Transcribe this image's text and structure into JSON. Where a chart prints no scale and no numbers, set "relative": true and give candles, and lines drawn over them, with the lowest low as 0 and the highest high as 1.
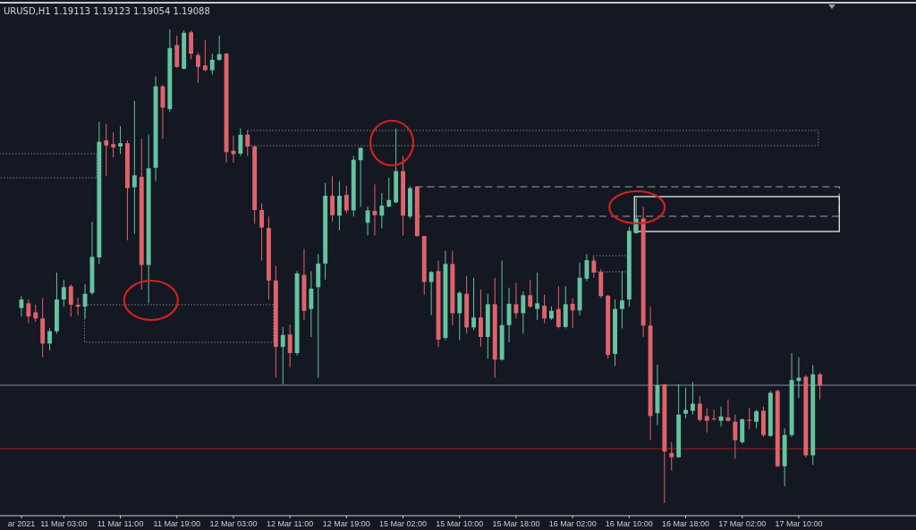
{
  "chart_data": {
    "type": "candlestick",
    "title": "URUSD,H1  1.19113 1.19123 1.19054 1.19088",
    "relative": true,
    "categories": [
      "ar 2021",
      null,
      null,
      null,
      null,
      null,
      "11 Mar 03:00",
      null,
      null,
      null,
      null,
      null,
      null,
      null,
      "11 Mar 11:00",
      null,
      null,
      null,
      null,
      null,
      null,
      null,
      "11 Mar 19:00",
      null,
      null,
      null,
      null,
      null,
      null,
      null,
      "12 Mar 03:00",
      null,
      null,
      null,
      null,
      null,
      null,
      null,
      "12 Mar 11:00",
      null,
      null,
      null,
      null,
      null,
      null,
      null,
      "12 Mar 19:00",
      null,
      null,
      null,
      null,
      null,
      null,
      null,
      "15 Mar 02:00",
      null,
      null,
      null,
      null,
      null,
      null,
      null,
      "15 Mar 10:00",
      null,
      null,
      null,
      null,
      null,
      null,
      null,
      "15 Mar 18:00",
      null,
      null,
      null,
      null,
      null,
      null,
      null,
      "16 Mar 02:00",
      null,
      null,
      null,
      null,
      null,
      null,
      null,
      "16 Mar 10:00",
      null,
      null,
      null,
      null,
      null,
      null,
      null,
      "16 Mar 18:00",
      null,
      null,
      null,
      null,
      null,
      null,
      null,
      "17 Mar 02:00",
      null,
      null,
      null,
      null,
      null,
      null,
      null,
      "17 Mar 10:00",
      null,
      null,
      null
    ],
    "ohlc": [
      [
        0.412,
        0.437,
        0.394,
        0.43
      ],
      [
        0.422,
        0.43,
        0.38,
        0.394
      ],
      [
        0.403,
        0.419,
        0.383,
        0.39
      ],
      [
        0.39,
        0.433,
        0.308,
        0.337
      ],
      [
        0.337,
        0.369,
        0.322,
        0.363
      ],
      [
        0.363,
        0.487,
        0.358,
        0.43
      ],
      [
        0.43,
        0.472,
        0.415,
        0.456
      ],
      [
        0.458,
        0.462,
        0.394,
        0.419
      ],
      [
        0.419,
        0.433,
        0.397,
        0.415
      ],
      [
        0.415,
        0.462,
        0.39,
        0.442
      ],
      [
        0.444,
        0.594,
        0.44,
        0.52
      ],
      [
        0.519,
        0.805,
        0.505,
        0.763
      ],
      [
        0.766,
        0.801,
        0.69,
        0.755
      ],
      [
        0.758,
        0.783,
        0.73,
        0.751
      ],
      [
        0.753,
        0.796,
        0.737,
        0.76
      ],
      [
        0.76,
        0.766,
        0.555,
        0.665
      ],
      [
        0.667,
        0.849,
        0.569,
        0.692
      ],
      [
        0.689,
        0.769,
        0.451,
        0.503
      ],
      [
        0.503,
        0.778,
        0.422,
        0.707
      ],
      [
        0.708,
        0.901,
        0.68,
        0.88
      ],
      [
        0.88,
        0.883,
        0.769,
        0.835
      ],
      [
        0.832,
        1,
        0.826,
        0.961
      ],
      [
        0.967,
        0.987,
        0.919,
        0.921
      ],
      [
        0.917,
        0.998,
        0.916,
        0.993
      ],
      [
        0.994,
        0.998,
        0.937,
        0.949
      ],
      [
        0.946,
        0.951,
        0.887,
        0.921
      ],
      [
        0.924,
        0.978,
        0.912,
        0.914
      ],
      [
        0.914,
        0.949,
        0.905,
        0.936
      ],
      [
        0.936,
        0.987,
        0.934,
        0.948
      ],
      [
        0.949,
        0.951,
        0.719,
        0.741
      ],
      [
        0.744,
        0.776,
        0.719,
        0.737
      ],
      [
        0.738,
        0.791,
        0.733,
        0.778
      ],
      [
        0.778,
        0.787,
        0.733,
        0.753
      ],
      [
        0.753,
        0.755,
        0.59,
        0.619
      ],
      [
        0.619,
        0.633,
        0.512,
        0.582
      ],
      [
        0.581,
        0.605,
        0.43,
        0.47
      ],
      [
        0.47,
        0.501,
        0.265,
        0.33
      ],
      [
        0.33,
        0.372,
        0.251,
        0.355
      ],
      [
        0.356,
        0.377,
        0.287,
        0.317
      ],
      [
        0.317,
        0.49,
        0.312,
        0.485
      ],
      [
        0.482,
        0.537,
        0.387,
        0.406
      ],
      [
        0.41,
        0.49,
        0.351,
        0.453
      ],
      [
        0.456,
        0.526,
        0.265,
        0.506
      ],
      [
        0.506,
        0.676,
        0.472,
        0.649
      ],
      [
        0.649,
        0.69,
        0.594,
        0.608
      ],
      [
        0.607,
        0.68,
        0.576,
        0.649
      ],
      [
        0.651,
        0.67,
        0.612,
        0.618
      ],
      [
        0.618,
        0.733,
        0.605,
        0.725
      ],
      [
        0.724,
        0.751,
        0.626,
        0.75
      ],
      [
        0.592,
        0.626,
        0.565,
        0.618
      ],
      [
        0.617,
        0.673,
        0.565,
        0.608
      ],
      [
        0.607,
        0.655,
        0.58,
        0.628
      ],
      [
        0.626,
        0.687,
        0.625,
        0.64
      ],
      [
        0.635,
        0.791,
        0.633,
        0.701
      ],
      [
        0.701,
        0.733,
        0.565,
        0.607
      ],
      [
        0.605,
        0.669,
        0.601,
        0.665
      ],
      [
        0.668,
        0.669,
        0.562,
        0.564
      ],
      [
        0.564,
        0.564,
        0.44,
        0.467
      ],
      [
        0.467,
        0.49,
        0.397,
        0.488
      ],
      [
        0.49,
        0.512,
        0.33,
        0.345
      ],
      [
        0.349,
        0.533,
        0.344,
        0.505
      ],
      [
        0.505,
        0.533,
        0.376,
        0.401
      ],
      [
        0.401,
        0.447,
        0.344,
        0.444
      ],
      [
        0.442,
        0.48,
        0.358,
        0.371
      ],
      [
        0.371,
        0.476,
        0.365,
        0.392
      ],
      [
        0.392,
        0.451,
        0.33,
        0.351
      ],
      [
        0.351,
        0.442,
        0.305,
        0.42
      ],
      [
        0.42,
        0.476,
        0.265,
        0.303
      ],
      [
        0.303,
        0.512,
        0.301,
        0.376
      ],
      [
        0.376,
        0.455,
        0.34,
        0.421
      ],
      [
        0.42,
        0.465,
        0.39,
        0.401
      ],
      [
        0.401,
        0.447,
        0.358,
        0.439
      ],
      [
        0.439,
        0.472,
        0.412,
        0.415
      ],
      [
        0.41,
        0.487,
        0.387,
        0.422
      ],
      [
        0.417,
        0.44,
        0.38,
        0.39
      ],
      [
        0.39,
        0.415,
        0.387,
        0.406
      ],
      [
        0.41,
        0.458,
        0.369,
        0.372
      ],
      [
        0.372,
        0.458,
        0.369,
        0.42
      ],
      [
        0.421,
        0.433,
        0.37,
        0.407
      ],
      [
        0.407,
        0.508,
        0.397,
        0.476
      ],
      [
        0.474,
        0.526,
        0.469,
        0.513
      ],
      [
        0.512,
        0.519,
        0.476,
        0.487
      ],
      [
        0.488,
        0.494,
        0.433,
        0.437
      ],
      [
        0.438,
        0.44,
        0.305,
        0.313
      ],
      [
        0.315,
        0.43,
        0.29,
        0.41
      ],
      [
        0.41,
        0.49,
        0.369,
        0.428
      ],
      [
        0.43,
        0.583,
        0.415,
        0.575
      ],
      [
        0.57,
        0.644,
        0.569,
        0.601
      ],
      [
        0.601,
        0.626,
        0.351,
        0.375
      ],
      [
        0.375,
        0.415,
        0.133,
        0.184
      ],
      [
        0.19,
        0.292,
        0.165,
        0.249
      ],
      [
        0.251,
        0.252,
        0,
        0.109
      ],
      [
        0.106,
        0.129,
        0.069,
        0.097
      ],
      [
        0.097,
        0.251,
        0.096,
        0.187
      ],
      [
        0.189,
        0.244,
        0.179,
        0.197
      ],
      [
        0.195,
        0.256,
        0.187,
        0.21
      ],
      [
        0.21,
        0.226,
        0.172,
        0.176
      ],
      [
        0.184,
        0.201,
        0.149,
        0.174
      ],
      [
        0.179,
        0.197,
        0.174,
        0.177
      ],
      [
        0.174,
        0.204,
        0.162,
        0.183
      ],
      [
        0.181,
        0.219,
        0.172,
        0.174
      ],
      [
        0.172,
        0.187,
        0.094,
        0.133
      ],
      [
        0.129,
        0.179,
        0.126,
        0.177
      ],
      [
        0.176,
        0.201,
        0.156,
        0.174
      ],
      [
        0.172,
        0.197,
        0.158,
        0.194
      ],
      [
        0.195,
        0.204,
        0.14,
        0.144
      ],
      [
        0.142,
        0.237,
        0.14,
        0.233
      ],
      [
        0.237,
        0.24,
        0.076,
        0.078
      ],
      [
        0.078,
        0.158,
        0.036,
        0.144
      ],
      [
        0.144,
        0.317,
        0.14,
        0.26
      ],
      [
        0.258,
        0.308,
        0.222,
        0.265
      ],
      [
        0.267,
        0.27,
        0.097,
        0.101
      ],
      [
        0.101,
        0.292,
        0.081,
        0.272
      ],
      [
        0.272,
        0.276,
        0.219,
        0.249
      ]
    ],
    "colors": [
      "#64c3a0",
      "#e0636b",
      "#e0636b",
      "#e0636b",
      "#64c3a0",
      "#64c3a0",
      "#64c3a0",
      "#e0636b",
      "#e0636b",
      "#64c3a0",
      "#64c3a0",
      "#64c3a0",
      "#e0636b",
      "#e0636b",
      "#64c3a0",
      "#e0636b",
      "#64c3a0",
      "#e0636b",
      "#64c3a0",
      "#64c3a0",
      "#e0636b",
      "#64c3a0",
      "#e0636b",
      "#64c3a0",
      "#e0636b",
      "#e0636b",
      "#e0636b",
      "#64c3a0",
      "#64c3a0",
      "#e0636b",
      "#e0636b",
      "#64c3a0",
      "#e0636b",
      "#e0636b",
      "#e0636b",
      "#e0636b",
      "#e0636b",
      "#64c3a0",
      "#e0636b",
      "#64c3a0",
      "#e0636b",
      "#64c3a0",
      "#64c3a0",
      "#64c3a0",
      "#e0636b",
      "#64c3a0",
      "#e0636b",
      "#64c3a0",
      "#64c3a0",
      "#64c3a0",
      "#e0636b",
      "#64c3a0",
      "#64c3a0",
      "#64c3a0",
      "#e0636b",
      "#64c3a0",
      "#e0636b",
      "#e0636b",
      "#64c3a0",
      "#e0636b",
      "#64c3a0",
      "#e0636b",
      "#64c3a0",
      "#e0636b",
      "#64c3a0",
      "#e0636b",
      "#64c3a0",
      "#e0636b",
      "#64c3a0",
      "#64c3a0",
      "#e0636b",
      "#64c3a0",
      "#e0636b",
      "#64c3a0",
      "#e0636b",
      "#64c3a0",
      "#e0636b",
      "#64c3a0",
      "#e0636b",
      "#64c3a0",
      "#64c3a0",
      "#e0636b",
      "#e0636b",
      "#e0636b",
      "#64c3a0",
      "#64c3a0",
      "#64c3a0",
      "#64c3a0",
      "#e0636b",
      "#e0636b",
      "#64c3a0",
      "#e0636b",
      "#e0636b",
      "#64c3a0",
      "#64c3a0",
      "#64c3a0",
      "#e0636b",
      "#e0636b",
      "#e0636b",
      "#64c3a0",
      "#e0636b",
      "#e0636b",
      "#64c3a0",
      "#e0636b",
      "#64c3a0",
      "#e0636b",
      "#64c3a0",
      "#e0636b",
      "#64c3a0",
      "#64c3a0",
      "#64c3a0",
      "#e0636b",
      "#64c3a0",
      "#e0636b"
    ],
    "ref_lines": [
      {
        "axis": "y",
        "value": 0.249,
        "color": "#8a8f99"
      },
      {
        "axis": "y",
        "value": 0.115,
        "color": "#a32222"
      }
    ],
    "grid": false
  }
}
